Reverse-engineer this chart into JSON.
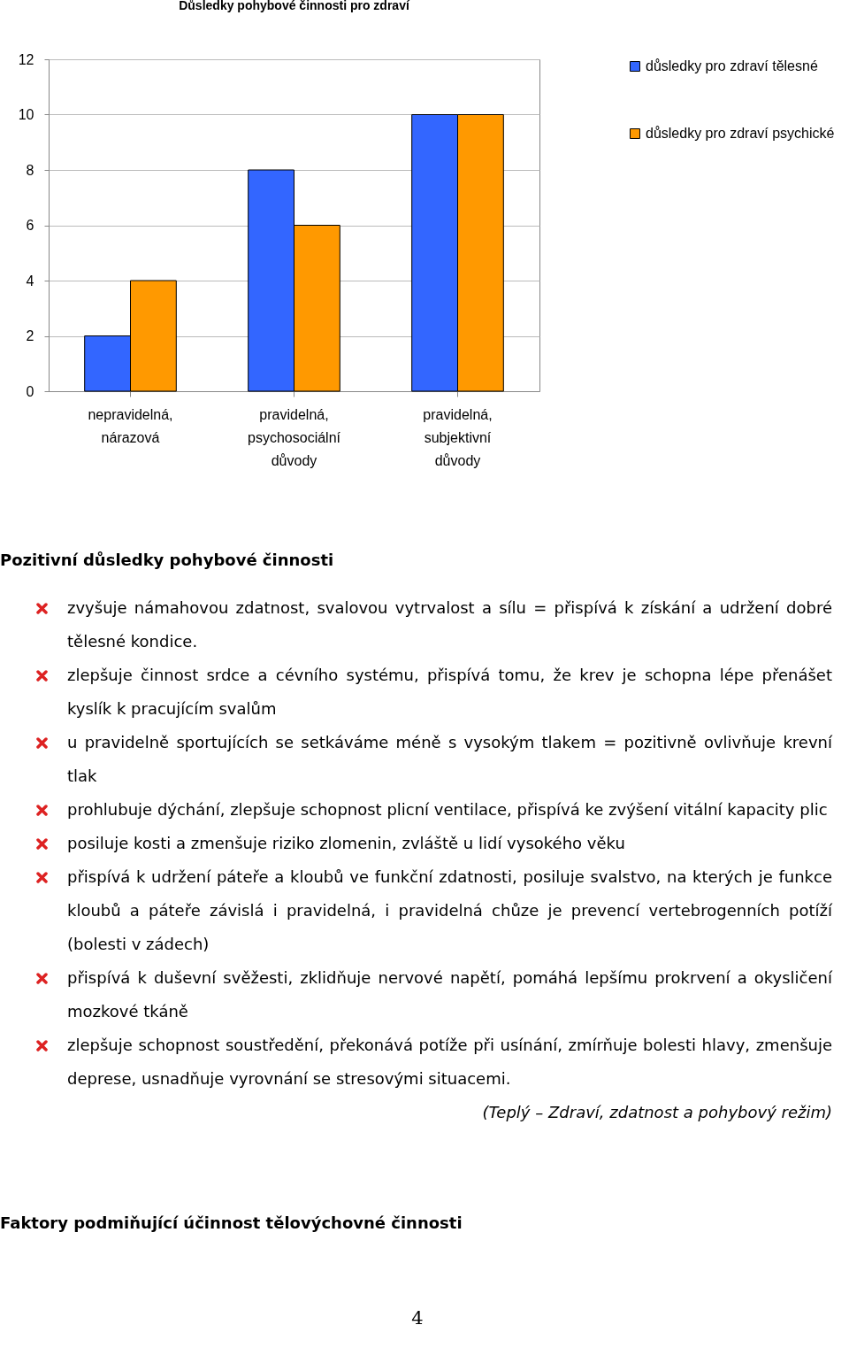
{
  "chart_data": {
    "type": "bar",
    "title": "Důsledky pohybové činnosti pro zdraví",
    "categories": [
      "nepravidelná, nárazová",
      "pravidelná, psychosociální důvody",
      "pravidelná, subjektivní důvody"
    ],
    "series": [
      {
        "name": "důsledky pro zdraví tělesné",
        "color": "#3366ff",
        "values": [
          2,
          8,
          10
        ]
      },
      {
        "name": "důsledky pro zdraví psychické",
        "color": "#ff9900",
        "values": [
          4,
          6,
          10
        ]
      }
    ],
    "ylim": [
      0,
      12
    ],
    "yticks": [
      0,
      2,
      4,
      6,
      8,
      10,
      12
    ],
    "grid": "y",
    "legend": "right",
    "annotations": [
      "Pozitivní důsledky pohybové činnosti",
      "zvyšuje námahovou zdatnost, svalovou vytrvalost a sílu = přispívá k získání a udržení dobré tělesné kondice.",
      "zlepšuje činnost srdce a cévního systému, přispívá tomu, že krev je schopna lépe přenášet kyslík k pracujícím svalům",
      "u pravidelně sportujících se setkáváme méně s vysokým tlakem = pozitivně ovlivňuje krevní tlak",
      "prohlubuje dýchání, zlepšuje schopnost plicní ventilace, přispívá ke zvýšení vitální kapacity plic",
      "posiluje kosti a zmenšuje riziko zlomenin, zvláště u lidí vysokého věku",
      "přispívá k udržení páteře a kloubů ve funkční zdatnosti, posiluje svalstvo, na kterých je funkce kloubů a páteře závislá i pravidelná, i pravidelná chůze je prevencí vertebrogenních potíží (bolesti v zádech)",
      "přispívá k duševní svěžesti, zklidňuje nervové napětí, pomáhá lepšímu prokrvení a okysličení mozkové tkáně",
      "zlepšuje schopnost soustředění, překonává potíže při usínání, zmírňuje bolesti hlavy, zmenšuje deprese, usnadňuje vyrovnání se  stresovými situacemi.",
      "(Teplý – Zdraví, zdatnost a pohybový režim)",
      "Faktory podmiňující účinnost tělovýchovné činnosti",
      "4"
    ]
  }
}
